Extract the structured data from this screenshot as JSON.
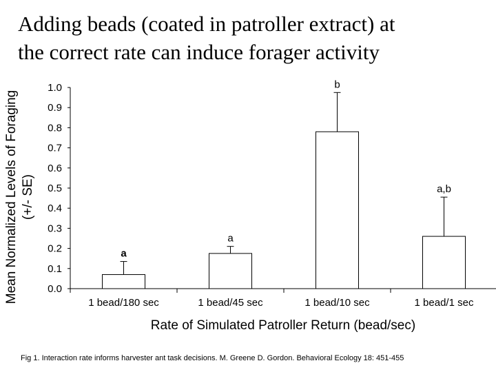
{
  "title": {
    "line1": "Adding beads (coated in patroller extract) at",
    "line2": "the correct rate can induce forager activity"
  },
  "caption": "Fig 1. Interaction rate informs harvester ant task decisions.  M. Greene  D. Gordon.  Behavioral Ecology 18: 451-455",
  "chart_data": {
    "type": "bar",
    "categories": [
      "1 bead/180 sec",
      "1 bead/45 sec",
      "1 bead/10 sec",
      "1 bead/1 sec"
    ],
    "values": [
      0.07,
      0.175,
      0.78,
      0.26
    ],
    "error_upper": [
      0.135,
      0.21,
      0.975,
      0.455
    ],
    "annotations": [
      "a",
      "a",
      "b",
      "a,b"
    ],
    "ylabel_line1": "Mean Normalized Levels of Foraging",
    "ylabel_line2": "(+/- SE)",
    "xlabel": "Rate of Simulated Patroller Return (bead/sec)",
    "ylim": [
      0,
      1.0
    ],
    "yticks": [
      "0.0",
      "0.1",
      "0.2",
      "0.3",
      "0.4",
      "0.5",
      "0.6",
      "0.7",
      "0.8",
      "0.9",
      "1.0"
    ],
    "bar_fill": "#ffffff",
    "bar_stroke": "#000000"
  }
}
